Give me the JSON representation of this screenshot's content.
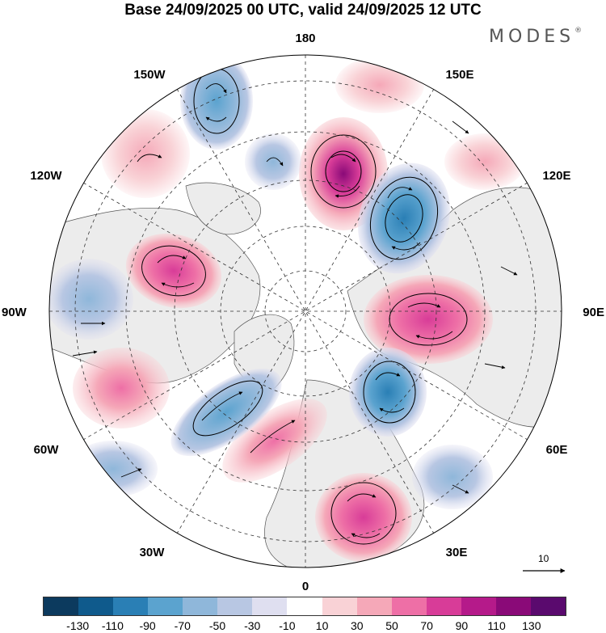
{
  "header": {
    "title": "Base 24/09/2025 00 UTC, valid 24/09/2025 12 UTC"
  },
  "brand": {
    "text": "MODES",
    "mark": "®"
  },
  "map": {
    "projection": "north-polar-stereographic",
    "longitude_labels": {
      "top": "180",
      "bottom": "0",
      "left": "90W",
      "right": "90E",
      "l150": "150W",
      "l120": "120W",
      "l60": "60W",
      "l30": "30W",
      "r150": "150E",
      "r120": "120E",
      "r60": "60E",
      "r30": "30E"
    },
    "anomalies": [
      {
        "name": "anom-positive-north",
        "value": 110
      },
      {
        "name": "anom-negative-ne",
        "value": -90
      },
      {
        "name": "anom-positive-east",
        "value": 90
      },
      {
        "name": "anom-negative-se",
        "value": -90
      },
      {
        "name": "anom-positive-south",
        "value": 70
      },
      {
        "name": "anom-negative-sw",
        "value": -70
      },
      {
        "name": "anom-positive-west",
        "value": 70
      },
      {
        "name": "anom-negative-nw",
        "value": -70
      },
      {
        "name": "anom-positive-atlantic",
        "value": 50
      },
      {
        "name": "anom-positive-pacific",
        "value": 30
      }
    ]
  },
  "wind_reference": {
    "label": "10"
  },
  "colorbar": {
    "colors": [
      "#0c3a5e",
      "#0f5a8c",
      "#2a7fb5",
      "#5ba3cf",
      "#8fb7da",
      "#b8c7e3",
      "#dfdff0",
      "#ffffff",
      "#f9d2d6",
      "#f5a8b8",
      "#ee6fa6",
      "#d83c98",
      "#b51a8a",
      "#8a0a78",
      "#5a0a6e"
    ],
    "tick_labels": [
      "-130",
      "-110",
      "-90",
      "-70",
      "-50",
      "-30",
      "-10",
      "10",
      "30",
      "50",
      "70",
      "90",
      "110",
      "130"
    ]
  }
}
